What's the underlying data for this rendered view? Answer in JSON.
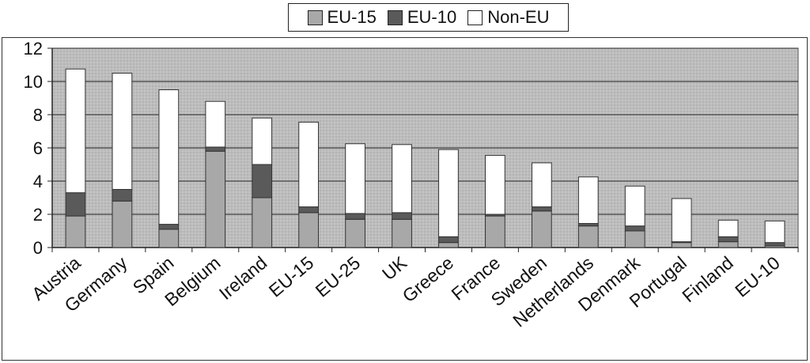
{
  "chart_data": {
    "type": "bar",
    "stacked": true,
    "categories": [
      "Austria",
      "Germany",
      "Spain",
      "Belgium",
      "Ireland",
      "EU-15",
      "EU-25",
      "UK",
      "Greece",
      "France",
      "Sweden",
      "Netherlands",
      "Denmark",
      "Portugal",
      "Finland",
      "EU-10"
    ],
    "series": [
      {
        "name": "EU-15",
        "color": "#a8a8a8",
        "values": [
          1.9,
          2.8,
          1.1,
          5.8,
          3.0,
          2.1,
          1.7,
          1.7,
          0.3,
          1.9,
          2.2,
          1.3,
          1.0,
          0.3,
          0.35,
          0.1
        ]
      },
      {
        "name": "EU-10",
        "color": "#5a5a5a",
        "values": [
          1.4,
          0.7,
          0.3,
          0.25,
          2.0,
          0.35,
          0.35,
          0.4,
          0.35,
          0.1,
          0.25,
          0.15,
          0.3,
          0.05,
          0.3,
          0.2
        ]
      },
      {
        "name": "Non-EU",
        "color": "#ffffff",
        "values": [
          7.45,
          7.0,
          8.1,
          2.75,
          2.8,
          5.1,
          4.2,
          4.1,
          5.25,
          3.55,
          2.65,
          2.8,
          2.4,
          2.6,
          1.0,
          1.3
        ]
      }
    ],
    "yticks": [
      0,
      2,
      4,
      6,
      8,
      10,
      12
    ],
    "ylim": [
      0,
      12
    ],
    "title": "",
    "xlabel": "",
    "ylabel": "",
    "grid": true,
    "legend_position": "top-center"
  },
  "colors": {
    "plot_background": "#b5b5b5",
    "gridline": "#222222",
    "bar_border": "#333333"
  }
}
